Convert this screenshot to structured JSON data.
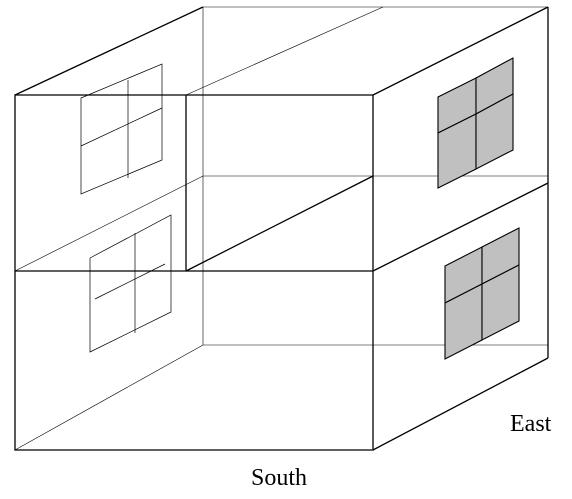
{
  "labels": {
    "south": "South",
    "east": "East"
  },
  "colors": {
    "stroke": "#000000",
    "window_pane_fill": "#c0c0c0",
    "background": "#ffffff"
  }
}
